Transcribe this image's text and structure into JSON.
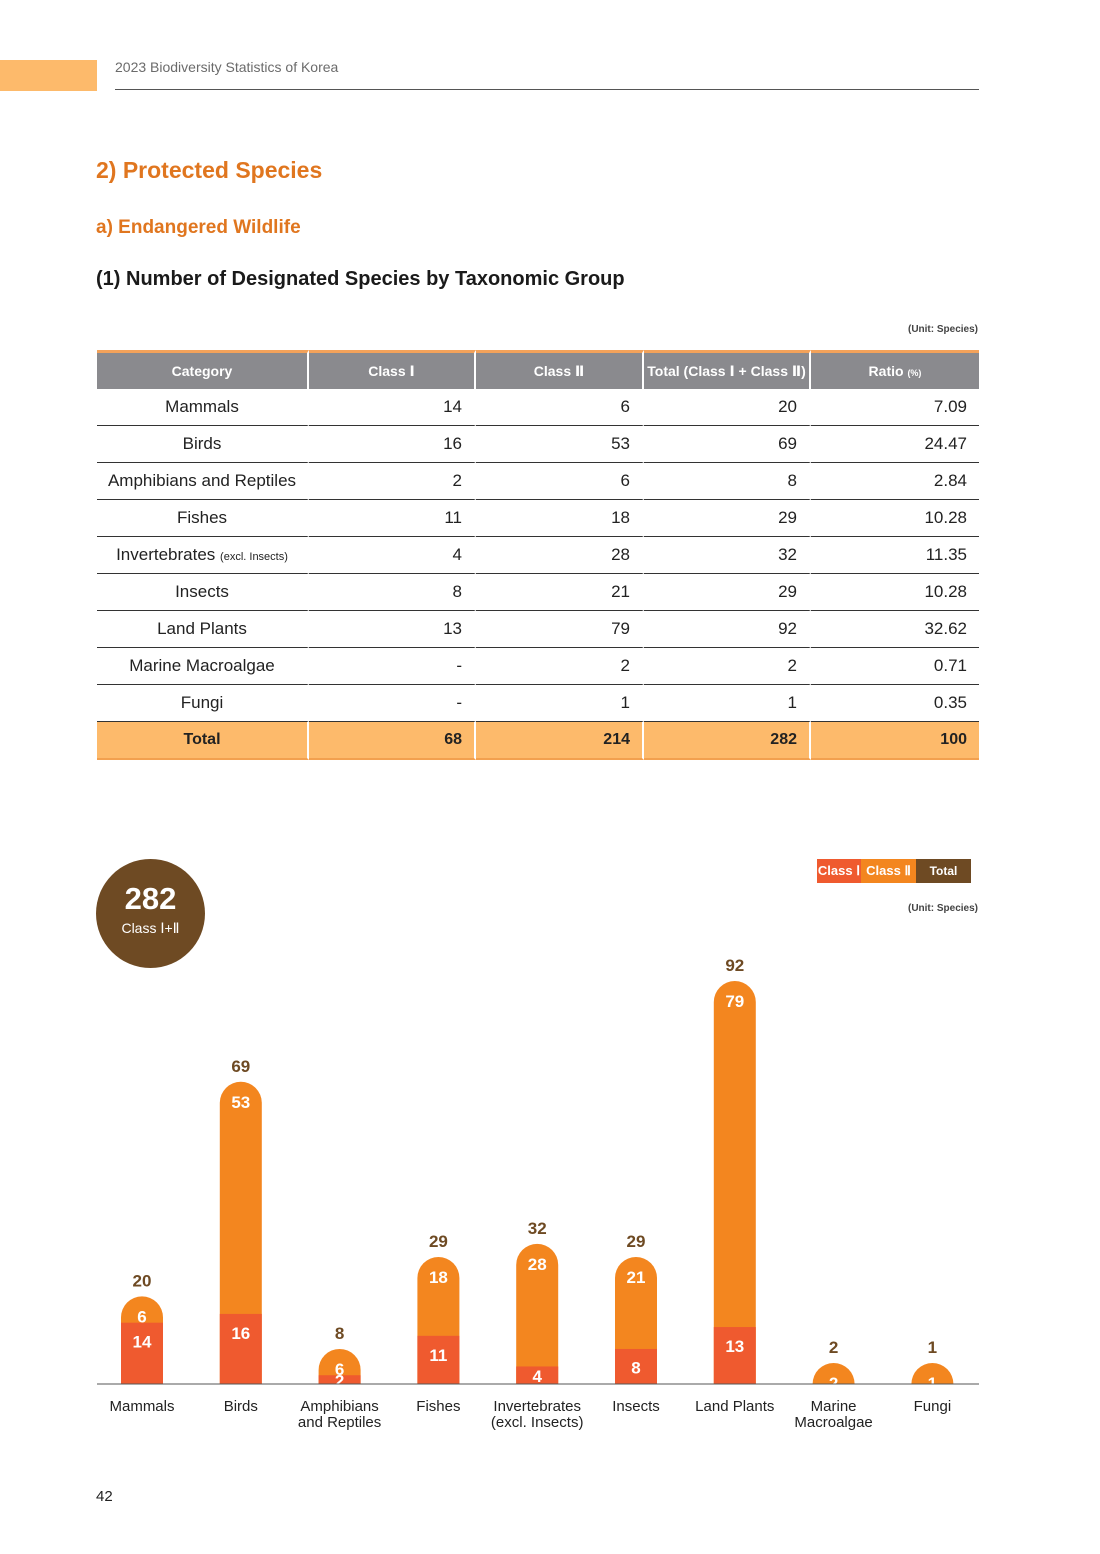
{
  "header": {
    "running_title": "2023 Biodiversity Statistics of Korea"
  },
  "headings": {
    "section": "2) Protected Species",
    "subsection": "a) Endangered Wildlife",
    "table_title": "(1) Number of Designated Species by Taxonomic Group"
  },
  "unit_label": "(Unit: Species)",
  "table": {
    "columns": [
      "Category",
      "Class Ⅰ",
      "Class Ⅱ",
      "Total (Class Ⅰ + Class Ⅱ)",
      "Ratio",
      "(%)"
    ],
    "rows": [
      {
        "category": "Mammals",
        "note": "",
        "class1": "14",
        "class2": "6",
        "total": "20",
        "ratio": "7.09"
      },
      {
        "category": "Birds",
        "note": "",
        "class1": "16",
        "class2": "53",
        "total": "69",
        "ratio": "24.47"
      },
      {
        "category": "Amphibians and Reptiles",
        "note": "",
        "class1": "2",
        "class2": "6",
        "total": "8",
        "ratio": "2.84"
      },
      {
        "category": "Fishes",
        "note": "",
        "class1": "11",
        "class2": "18",
        "total": "29",
        "ratio": "10.28"
      },
      {
        "category": "Invertebrates",
        "note": "(excl. Insects)",
        "class1": "4",
        "class2": "28",
        "total": "32",
        "ratio": "11.35"
      },
      {
        "category": "Insects",
        "note": "",
        "class1": "8",
        "class2": "21",
        "total": "29",
        "ratio": "10.28"
      },
      {
        "category": "Land Plants",
        "note": "",
        "class1": "13",
        "class2": "79",
        "total": "92",
        "ratio": "32.62"
      },
      {
        "category": "Marine Macroalgae",
        "note": "",
        "class1": "-",
        "class2": "2",
        "total": "2",
        "ratio": "0.71"
      },
      {
        "category": "Fungi",
        "note": "",
        "class1": "-",
        "class2": "1",
        "total": "1",
        "ratio": "0.35"
      }
    ],
    "total_row": {
      "category": "Total",
      "class1": "68",
      "class2": "214",
      "total": "282",
      "ratio": "100"
    }
  },
  "badge": {
    "value": "282",
    "label": "Class Ⅰ+Ⅱ"
  },
  "legend": {
    "class1": "Class Ⅰ",
    "class2": "Class Ⅱ",
    "total": "Total"
  },
  "colors": {
    "class1": "#ef5a2f",
    "class2": "#f3861f",
    "total": "#6e4a23",
    "header_gray": "#8a8a8e",
    "accent_orange": "#e0761f",
    "total_row_bg": "#fdba6b"
  },
  "chart_data": {
    "type": "bar",
    "stacked": true,
    "categories": [
      "Mammals",
      "Birds",
      "Amphibians and Reptiles",
      "Fishes",
      "Invertebrates (excl. Insects)",
      "Insects",
      "Land Plants",
      "Marine Macroalgae",
      "Fungi"
    ],
    "category_labels": [
      [
        "Mammals"
      ],
      [
        "Birds"
      ],
      [
        "Amphibians",
        "and Reptiles"
      ],
      [
        "Fishes"
      ],
      [
        "Invertebrates",
        "(excl. Insects)"
      ],
      [
        "Insects"
      ],
      [
        "Land Plants"
      ],
      [
        "Marine",
        "Macroalgae"
      ],
      [
        "Fungi"
      ]
    ],
    "series": [
      {
        "name": "Class Ⅰ",
        "color": "#ef5a2f",
        "values": [
          14,
          16,
          2,
          11,
          4,
          8,
          13,
          0,
          0
        ]
      },
      {
        "name": "Class Ⅱ",
        "color": "#f3861f",
        "values": [
          6,
          53,
          6,
          18,
          28,
          21,
          79,
          2,
          1
        ]
      }
    ],
    "totals": [
      20,
      69,
      8,
      29,
      32,
      29,
      92,
      2,
      1
    ],
    "total_color": "#6e4a23",
    "ylim": [
      0,
      100
    ],
    "grid": false,
    "legend_position": "top-right"
  },
  "page_number": "42"
}
